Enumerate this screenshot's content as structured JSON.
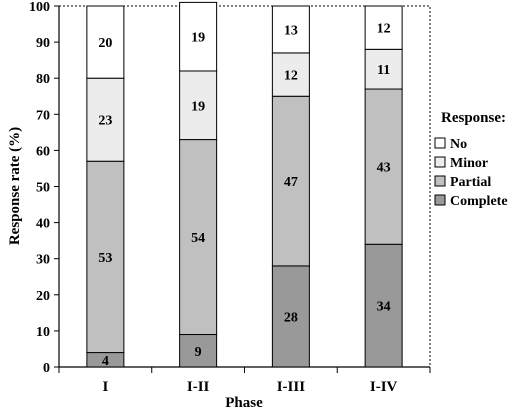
{
  "chart_data": {
    "type": "bar",
    "stacked": true,
    "categories": [
      "I",
      "I-II",
      "I-III",
      "I-IV"
    ],
    "series": [
      {
        "name": "Complete",
        "values": [
          4,
          9,
          28,
          34
        ],
        "color": "#999999"
      },
      {
        "name": "Partial",
        "values": [
          53,
          54,
          47,
          43
        ],
        "color": "#c0c0c0"
      },
      {
        "name": "Minor",
        "values": [
          23,
          19,
          12,
          11
        ],
        "color": "#ececec"
      },
      {
        "name": "No",
        "values": [
          20,
          19,
          13,
          12
        ],
        "color": "#ffffff"
      }
    ],
    "segment_labels": [
      [
        "4",
        "53",
        "23",
        "20"
      ],
      [
        "9",
        "54",
        "19",
        "19"
      ],
      [
        "28",
        "47",
        "12",
        "13"
      ],
      [
        "34",
        "43",
        "11",
        "12"
      ]
    ],
    "xlabel": "Phase",
    "ylabel": "Response rate (%)",
    "ylim": [
      0,
      100
    ],
    "yticks": [
      0,
      10,
      20,
      30,
      40,
      50,
      60,
      70,
      80,
      90,
      100
    ],
    "legend": {
      "title": "Response:",
      "position": "right",
      "entries": [
        "No",
        "Minor",
        "Partial",
        "Complete"
      ]
    },
    "grid": false
  }
}
